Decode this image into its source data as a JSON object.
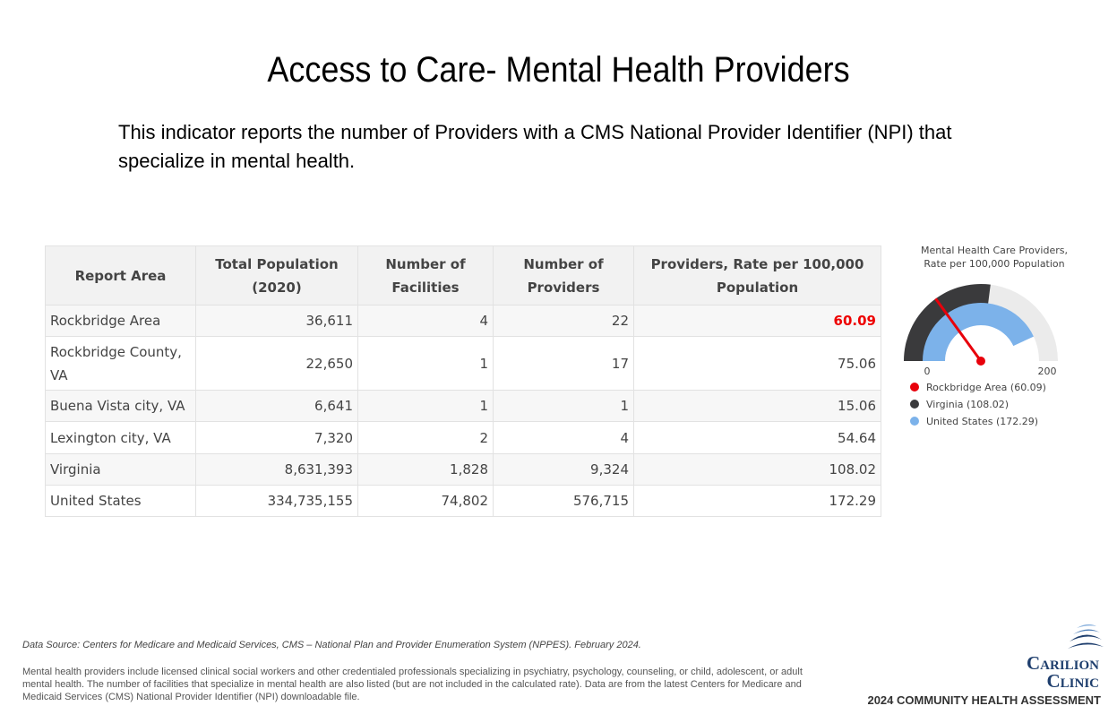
{
  "header": {
    "title": "Access to Care- Mental Health Providers",
    "description": "This indicator reports the number of Providers with a CMS National Provider Identifier (NPI) that specialize in mental health."
  },
  "table": {
    "headers": [
      "Report Area",
      "Total Population (2020)",
      "Number of Facilities",
      "Number of Providers",
      "Providers, Rate per 100,000 Population"
    ],
    "rows": [
      [
        "Rockbridge Area",
        "36,611",
        "4",
        "22",
        "60.09"
      ],
      [
        "Rockbridge County, VA",
        "22,650",
        "1",
        "17",
        "75.06"
      ],
      [
        "Buena Vista city, VA",
        "6,641",
        "1",
        "1",
        "15.06"
      ],
      [
        "Lexington city, VA",
        "7,320",
        "2",
        "4",
        "54.64"
      ],
      [
        "Virginia",
        "8,631,393",
        "1,828",
        "9,324",
        "108.02"
      ],
      [
        "United States",
        "334,735,155",
        "74,802",
        "576,715",
        "172.29"
      ]
    ]
  },
  "gauge": {
    "title": "Mental Health Care Providers, Rate per 100,000 Population",
    "min": 0,
    "max": 200,
    "series": [
      {
        "name": "Rockbridge Area (60.09)",
        "value": 60.09,
        "color": "#e8000b"
      },
      {
        "name": "Virginia (108.02)",
        "value": 108.02,
        "color": "#3a3a3c"
      },
      {
        "name": "United States (172.29)",
        "value": 172.29,
        "color": "#7cb2ea"
      }
    ]
  },
  "footer": {
    "source": "Data Source: Centers for Medicare and Medicaid Services, CMS – National Plan and Provider Enumeration System (NPPES). February 2024.",
    "note": "Mental health providers include licensed clinical social workers and other credentialed professionals specializing in psychiatry, psychology, counseling, or child, adolescent, or adult mental health. The number of facilities that specialize in mental health are also listed (but are not included in the calculated rate). Data are from the latest Centers for Medicare and Medicaid Services (CMS) National Provider Identifier (NPI) downloadable file.",
    "logo_line1": "Carilion",
    "logo_line2": "Clinic",
    "assessment": "2024 COMMUNITY HEALTH ASSESSMENT"
  }
}
